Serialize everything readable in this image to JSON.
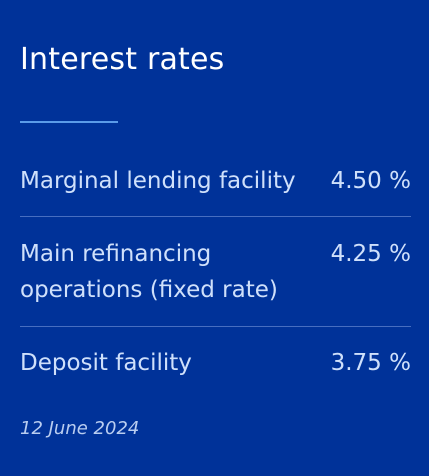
{
  "panel": {
    "title": "Interest rates",
    "rates": [
      {
        "label": "Marginal lending facility",
        "value": "4.50 %"
      },
      {
        "label": "Main refinancing operations (fixed rate)",
        "value": "4.25 %"
      },
      {
        "label": "Deposit facility",
        "value": "3.75 %"
      }
    ],
    "date": "12 June 2024"
  },
  "colors": {
    "background": "#003299",
    "title": "#ffffff",
    "text": "#cfe0fb",
    "accent_underline": "#5b9be8",
    "divider": "#4f74c4"
  }
}
